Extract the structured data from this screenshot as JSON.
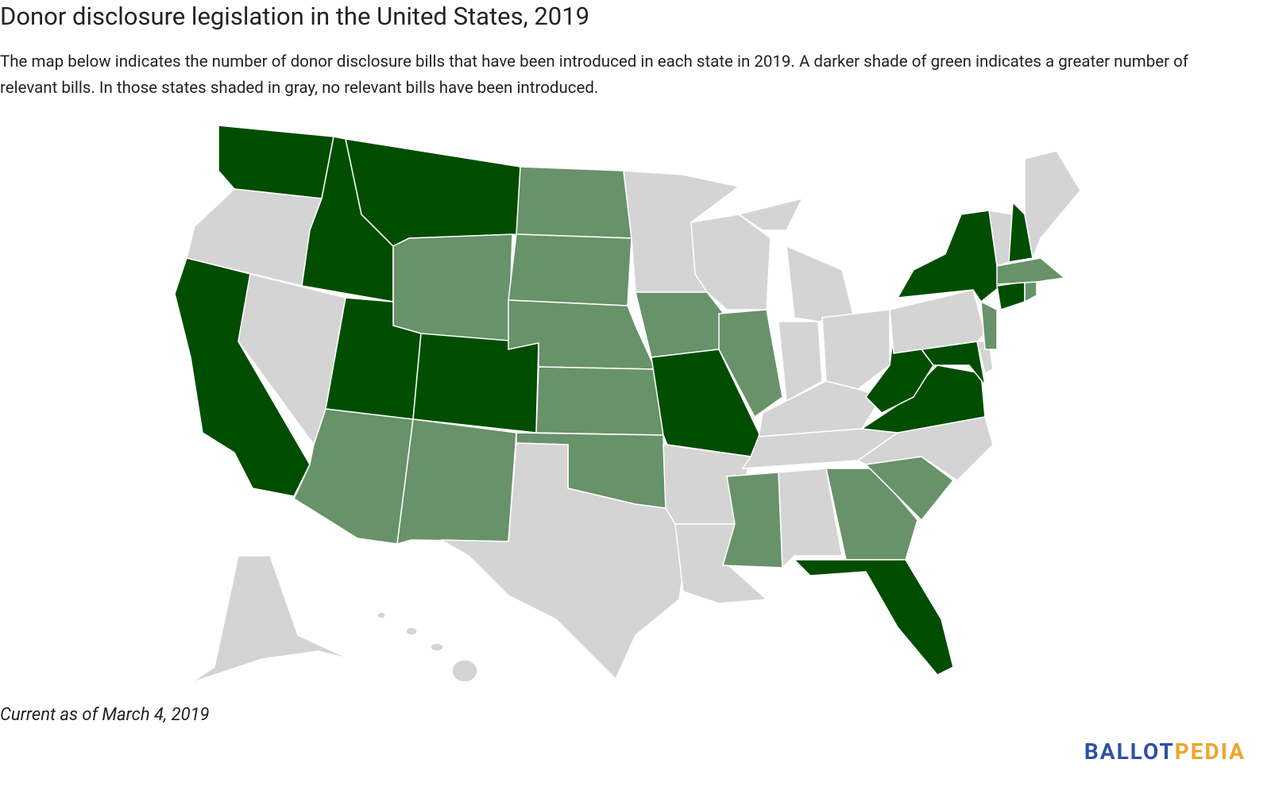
{
  "header": {
    "title": "Donor disclosure legislation in the United States, 2019",
    "subtitle": "The map below indicates the number of donor disclosure bills that have been introduced in each state in 2019. A darker shade of green indicates a greater number of relevant bills. In those states shaded in gray, no relevant bills have been introduced."
  },
  "footer": {
    "note": "Current as of March 4, 2019",
    "logo": {
      "part1": "BALLOT",
      "part2": "PEDIA"
    }
  }
}
